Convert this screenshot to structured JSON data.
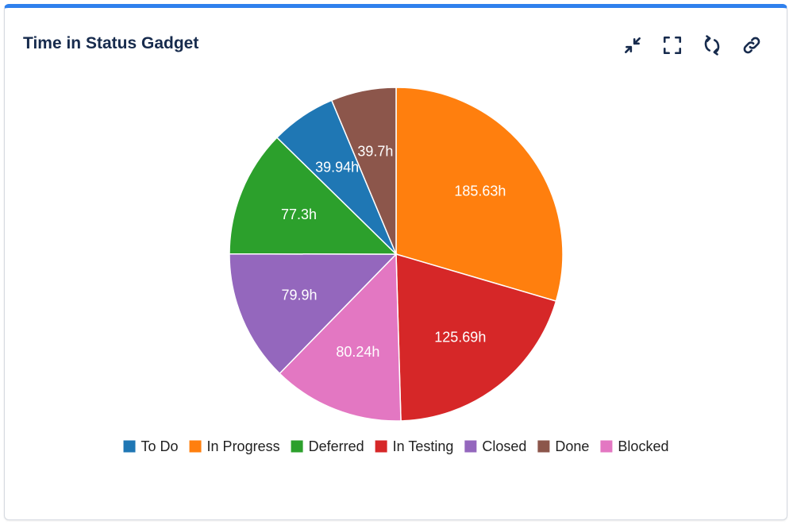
{
  "gadget": {
    "title": "Time in Status Gadget",
    "toolbar": [
      {
        "name": "minimize-button",
        "icon": "minimize-icon"
      },
      {
        "name": "fullscreen-button",
        "icon": "fullscreen-icon"
      },
      {
        "name": "refresh-button",
        "icon": "refresh-icon"
      },
      {
        "name": "link-button",
        "icon": "link-icon"
      }
    ]
  },
  "chart_data": {
    "type": "pie",
    "slices": [
      {
        "label": "To Do",
        "value": 39.94,
        "display": "39.94h",
        "color": "#1f77b4"
      },
      {
        "label": "In Progress",
        "value": 185.63,
        "display": "185.63h",
        "color": "#ff7f0e"
      },
      {
        "label": "Deferred",
        "value": 77.3,
        "display": "77.3h",
        "color": "#2ca02c"
      },
      {
        "label": "In Testing",
        "value": 125.69,
        "display": "125.69h",
        "color": "#d62728"
      },
      {
        "label": "Closed",
        "value": 79.9,
        "display": "79.9h",
        "color": "#9467bd"
      },
      {
        "label": "Done",
        "value": 39.7,
        "display": "39.7h",
        "color": "#8c564b"
      },
      {
        "label": "Blocked",
        "value": 80.24,
        "display": "80.24h",
        "color": "#e377c2"
      }
    ],
    "draw_order": [
      "In Progress",
      "In Testing",
      "Blocked",
      "Closed",
      "Deferred",
      "To Do",
      "Done"
    ],
    "legend": "bottom"
  }
}
